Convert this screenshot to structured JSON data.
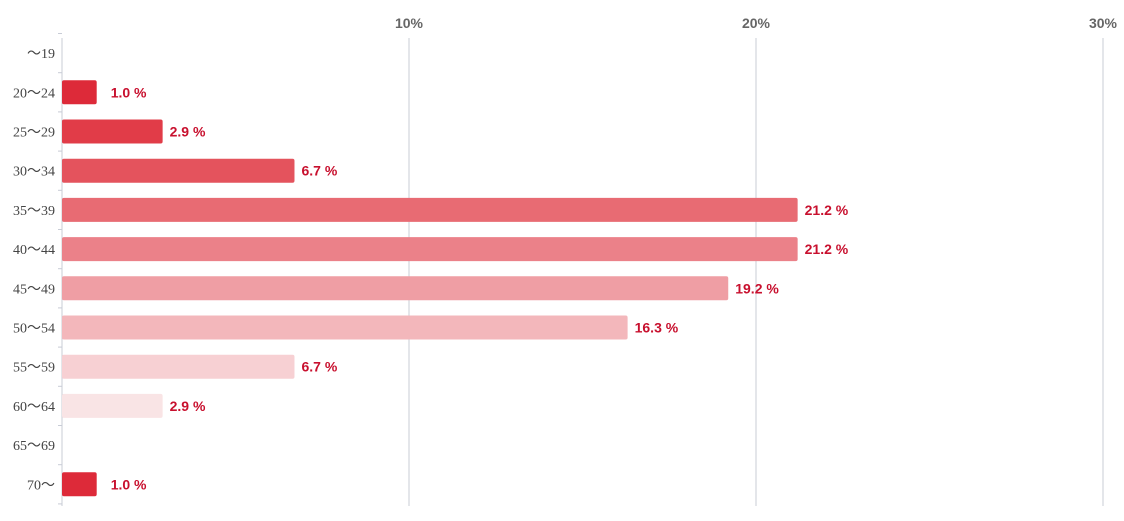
{
  "chart_data": {
    "type": "bar",
    "orientation": "horizontal",
    "categories": [
      "〜19",
      "20〜24",
      "25〜29",
      "30〜34",
      "35〜39",
      "40〜44",
      "45〜49",
      "50〜54",
      "55〜59",
      "60〜64",
      "65〜69",
      "70〜"
    ],
    "values": [
      0,
      1.0,
      2.9,
      6.7,
      21.2,
      21.2,
      19.2,
      16.3,
      6.7,
      2.9,
      0,
      1.0
    ],
    "value_labels": [
      "",
      "1.0 %",
      "2.9 %",
      "6.7 %",
      "21.2 %",
      "21.2 %",
      "19.2 %",
      "16.3 %",
      "6.7 %",
      "2.9 %",
      "",
      "1.0 %"
    ],
    "colors": [
      "#dd2a39",
      "#dd2a39",
      "#e13c48",
      "#e4535d",
      "#e86b73",
      "#eb8189",
      "#ef9ea4",
      "#f3b7bb",
      "#f7d0d3",
      "#f9e4e5",
      "#dd2a39",
      "#dd2a39"
    ],
    "xlim": [
      0,
      30
    ],
    "ticks": [
      {
        "value": 10,
        "label": "10%"
      },
      {
        "value": 20,
        "label": "20%"
      },
      {
        "value": 30,
        "label": "30%"
      }
    ],
    "axis_position": "top",
    "grid": true,
    "legend": "none",
    "title": "",
    "xlabel": "",
    "ylabel": ""
  }
}
